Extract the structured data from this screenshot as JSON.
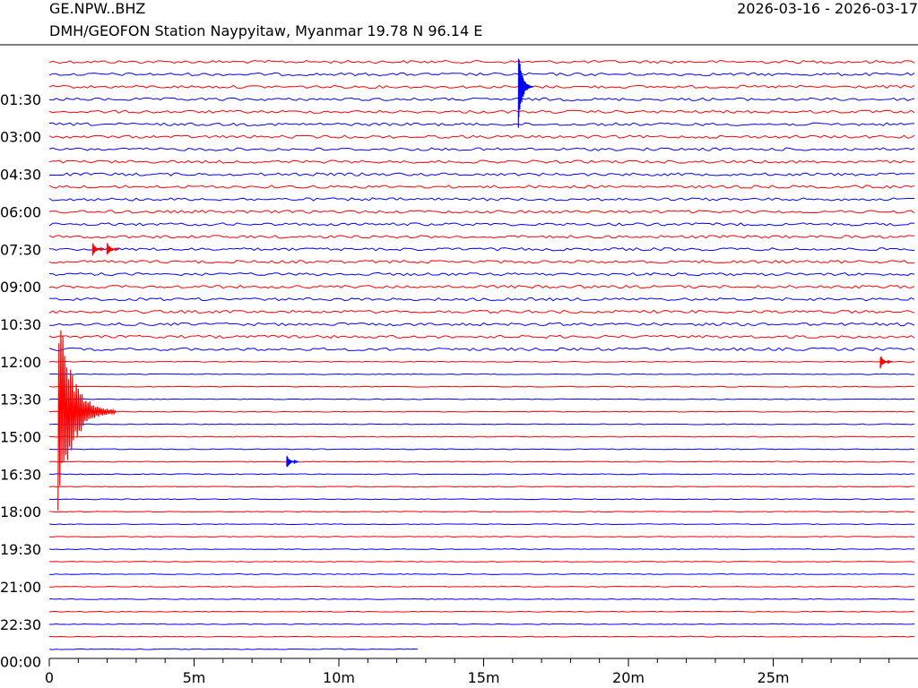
{
  "header": {
    "station_code": "GE.NPW..BHZ",
    "station_desc": "DMH/GEOFON Station Naypyitaw, Myanmar  19.78 N 96.14 E",
    "date_range": "2026-03-16 - 2026-03-17"
  },
  "chart_data": {
    "type": "line",
    "title": "GE.NPW..BHZ",
    "xlabel": "",
    "ylabel": "",
    "x_unit": "minutes",
    "xlim": [
      0,
      30
    ],
    "x_ticks": [
      {
        "value": 0,
        "label": "0"
      },
      {
        "value": 5,
        "label": "5m"
      },
      {
        "value": 10,
        "label": "10m"
      },
      {
        "value": 15,
        "label": "15m"
      },
      {
        "value": 20,
        "label": "20m"
      },
      {
        "value": 25,
        "label": "25m"
      }
    ],
    "trace_interval_minutes": 30,
    "trace_count": 48,
    "last_trace_end_minutes": 12.8,
    "colors": [
      "#ff0000",
      "#0000ff"
    ],
    "y_time_labels": [
      "01:30",
      "03:00",
      "04:30",
      "06:00",
      "07:30",
      "09:00",
      "10:30",
      "12:00",
      "13:30",
      "15:00",
      "16:30",
      "18:00",
      "19:30",
      "21:00",
      "22:30",
      "00:00"
    ],
    "events": [
      {
        "trace_start": "01:00",
        "minute": 16.2,
        "color": "blue"
      },
      {
        "trace_start": "07:30",
        "minute": 1.5,
        "color": "red"
      },
      {
        "trace_start": "07:30",
        "minute": 2.0,
        "color": "red"
      },
      {
        "trace_start": "12:00",
        "minute": 28.7,
        "color": "red"
      },
      {
        "trace_start": "14:00",
        "minute": 0.3,
        "color": "red"
      },
      {
        "trace_start": "16:00",
        "minute": 8.2,
        "color": "blue"
      }
    ]
  }
}
